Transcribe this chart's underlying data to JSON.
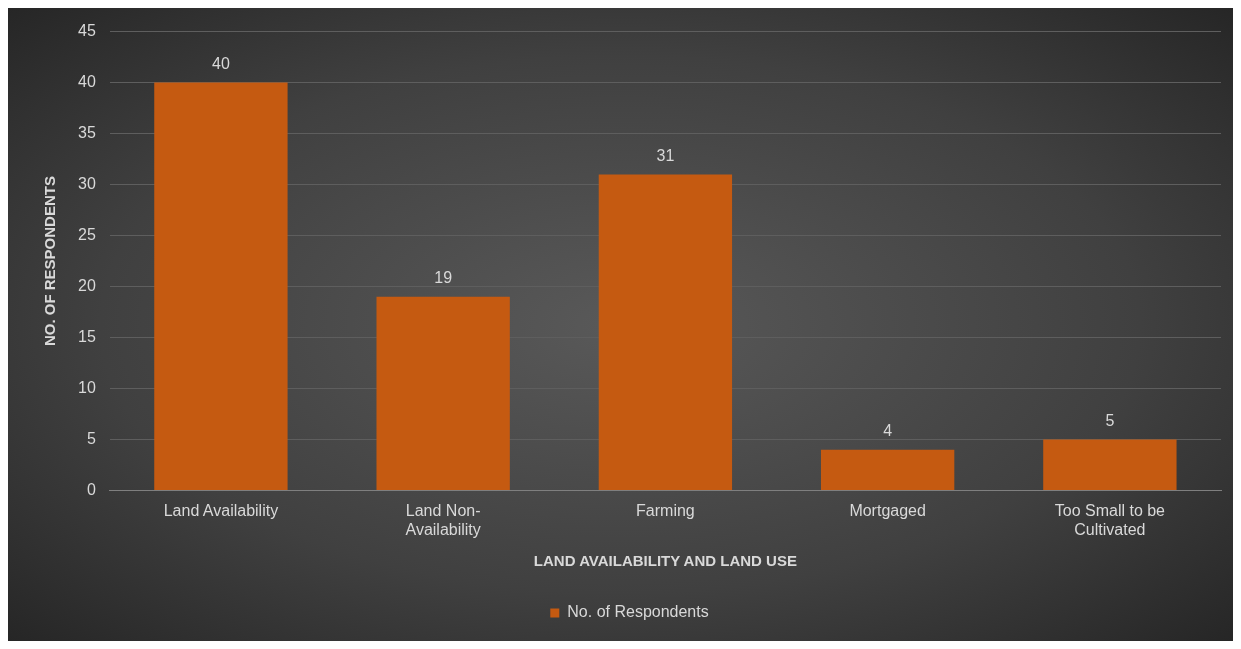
{
  "chart_data": {
    "type": "bar",
    "xlabel": "LAND AVAILABILITY AND LAND USE",
    "ylabel": "NO. OF RESPONDENTS",
    "categories": [
      "Land Availability",
      "Land Non-Availability",
      "Farming",
      "Mortgaged",
      "Too Small to be Cultivated"
    ],
    "series": [
      {
        "name": "No. of Respondents",
        "color": "#c55a11",
        "values": [
          40,
          19,
          31,
          4,
          5
        ]
      }
    ],
    "ylim": [
      0,
      45
    ],
    "yticks": [
      0,
      5,
      10,
      15,
      20,
      25,
      30,
      35,
      40,
      45
    ],
    "grid": "y",
    "legend": "bottom",
    "data_labels": true
  }
}
